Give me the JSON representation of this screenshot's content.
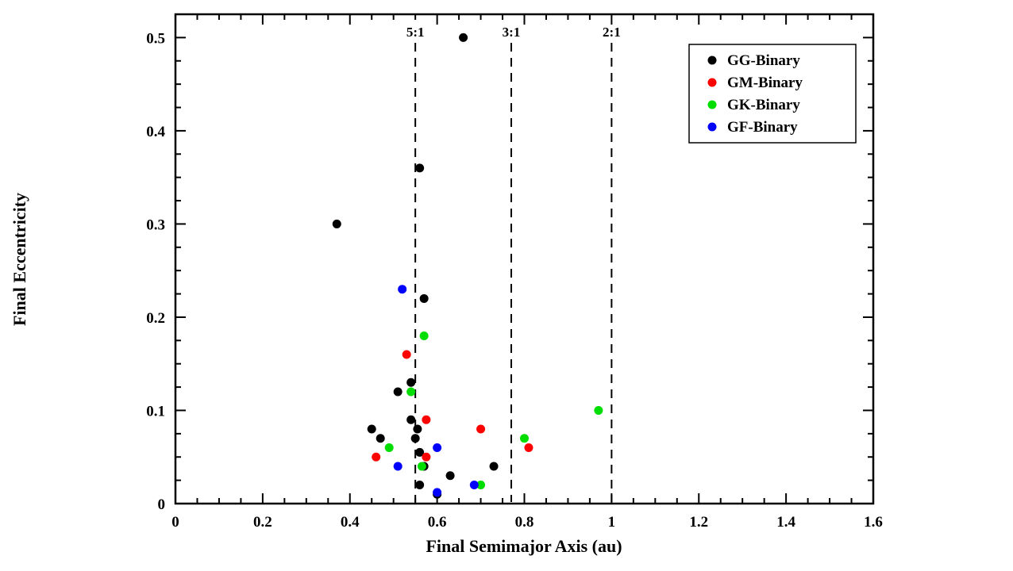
{
  "figure": {
    "background": "#ffffff",
    "frame_color": "#000000"
  },
  "chart_data": {
    "type": "scatter",
    "title": "",
    "xlabel": "Final Semimajor Axis (au)",
    "ylabel": "Final Eccentricity",
    "xlim": [
      0,
      1.6
    ],
    "ylim": [
      0,
      0.525
    ],
    "xticks": [
      0,
      0.2,
      0.4,
      0.6,
      0.8,
      1.0,
      1.2,
      1.4,
      1.6
    ],
    "xtick_labels": [
      "0",
      "0.2",
      "0.4",
      "0.6",
      "0.8",
      "1",
      "1.2",
      "1.4",
      "1.6"
    ],
    "xminor_step": 0.05,
    "yticks": [
      0,
      0.1,
      0.2,
      0.3,
      0.4,
      0.5
    ],
    "ytick_labels": [
      "0",
      "0.1",
      "0.2",
      "0.3",
      "0.4",
      "0.5"
    ],
    "yminor_step": 0.025,
    "grid": false,
    "legend_position": "top-right",
    "resonance_lines": [
      {
        "label": "5:1",
        "x": 0.55
      },
      {
        "label": "3:1",
        "x": 0.77
      },
      {
        "label": "2:1",
        "x": 1.0
      }
    ],
    "series": [
      {
        "name": "GG-Binary",
        "color": "#000000",
        "points": [
          [
            0.66,
            0.5
          ],
          [
            0.56,
            0.36
          ],
          [
            0.37,
            0.3
          ],
          [
            0.57,
            0.22
          ],
          [
            0.54,
            0.13
          ],
          [
            0.51,
            0.12
          ],
          [
            0.54,
            0.09
          ],
          [
            0.45,
            0.08
          ],
          [
            0.555,
            0.08
          ],
          [
            0.47,
            0.07
          ],
          [
            0.55,
            0.07
          ],
          [
            0.56,
            0.055
          ],
          [
            0.57,
            0.04
          ],
          [
            0.73,
            0.04
          ],
          [
            0.63,
            0.03
          ],
          [
            0.56,
            0.02
          ],
          [
            0.6,
            0.01
          ]
        ]
      },
      {
        "name": "GM-Binary",
        "color": "#ff0000",
        "points": [
          [
            0.53,
            0.16
          ],
          [
            0.575,
            0.09
          ],
          [
            0.7,
            0.08
          ],
          [
            0.46,
            0.05
          ],
          [
            0.575,
            0.05
          ],
          [
            0.81,
            0.06
          ]
        ]
      },
      {
        "name": "GK-Binary",
        "color": "#00dd00",
        "points": [
          [
            0.57,
            0.18
          ],
          [
            0.54,
            0.12
          ],
          [
            0.49,
            0.06
          ],
          [
            0.565,
            0.04
          ],
          [
            0.7,
            0.02
          ],
          [
            0.8,
            0.07
          ],
          [
            0.97,
            0.1
          ]
        ]
      },
      {
        "name": "GF-Binary",
        "color": "#0000ff",
        "points": [
          [
            0.52,
            0.23
          ],
          [
            0.6,
            0.06
          ],
          [
            0.51,
            0.04
          ],
          [
            0.685,
            0.02
          ],
          [
            0.6,
            0.012
          ]
        ]
      }
    ]
  }
}
